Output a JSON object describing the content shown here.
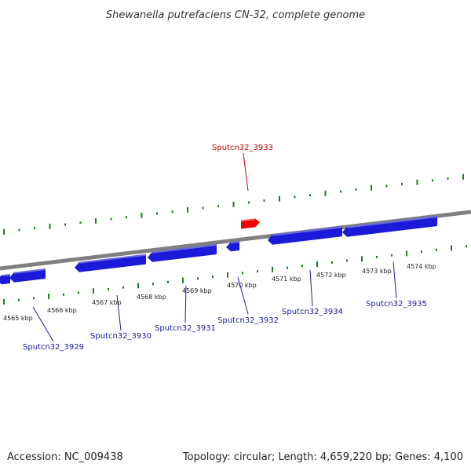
{
  "header": {
    "title": "Shewanella putrefaciens CN-32, complete genome"
  },
  "footer": {
    "accession": "Accession: NC_009438",
    "summary": "Topology: circular; Length: 4,659,220 bp; Genes: 4,100"
  },
  "colors": {
    "backbone": "#808080",
    "tick": "#1e7d1e",
    "forward_gene": "#ee0000",
    "reverse_gene": "#1a1ad8",
    "label_forward": "#cc0000",
    "label_reverse": "#1a1aa0"
  },
  "scale": {
    "unit": "kbp",
    "labels": [
      "4565 kbp",
      "4566 kbp",
      "4567 kbp",
      "4568 kbp",
      "4569 kbp",
      "4570 kbp",
      "4571 kbp",
      "4572 kbp",
      "4573 kbp",
      "4574 kbp"
    ]
  },
  "genes": [
    {
      "id": "Sputcn32_3929",
      "strand": "reverse"
    },
    {
      "id": "Sputcn32_3930",
      "strand": "reverse"
    },
    {
      "id": "Sputcn32_3931",
      "strand": "reverse"
    },
    {
      "id": "Sputcn32_3932",
      "strand": "reverse"
    },
    {
      "id": "Sputcn32_3933",
      "strand": "forward"
    },
    {
      "id": "Sputcn32_3934",
      "strand": "reverse"
    },
    {
      "id": "Sputcn32_3935",
      "strand": "reverse"
    }
  ]
}
